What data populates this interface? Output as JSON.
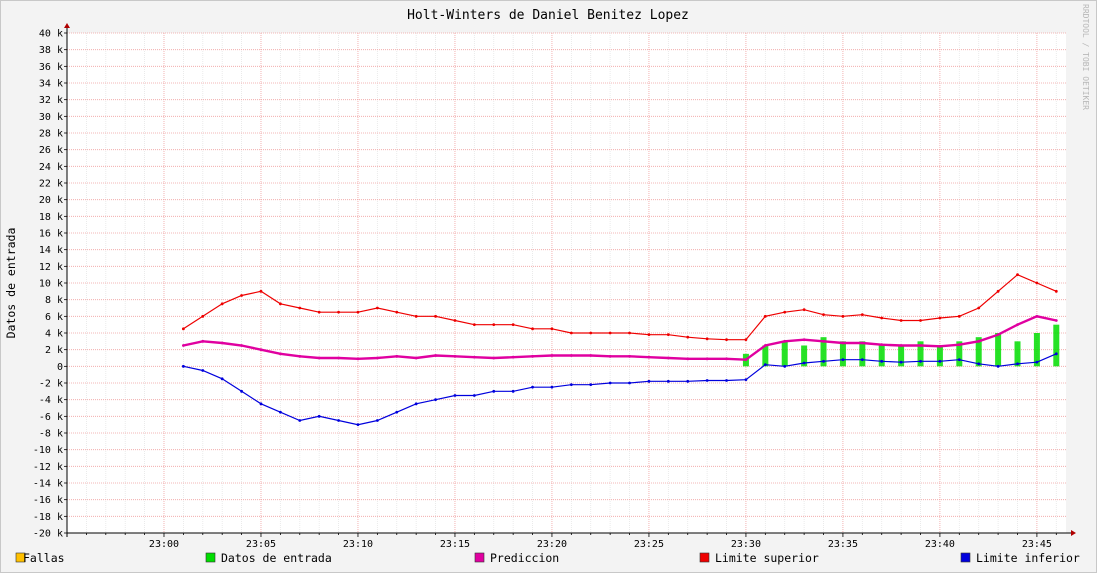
{
  "chart_data": {
    "type": "line",
    "title": "Holt-Winters de Daniel Benitez Lopez",
    "ylabel": "Datos de entrada",
    "watermark": "RRDTOOL / TOBI OETIKER",
    "ylim": [
      -20000,
      40000
    ],
    "y_ticks": [
      {
        "value": 40000,
        "label": "40 k"
      },
      {
        "value": 38000,
        "label": "38 k"
      },
      {
        "value": 36000,
        "label": "36 k"
      },
      {
        "value": 34000,
        "label": "34 k"
      },
      {
        "value": 32000,
        "label": "32 k"
      },
      {
        "value": 30000,
        "label": "30 k"
      },
      {
        "value": 28000,
        "label": "28 k"
      },
      {
        "value": 26000,
        "label": "26 k"
      },
      {
        "value": 24000,
        "label": "24 k"
      },
      {
        "value": 22000,
        "label": "22 k"
      },
      {
        "value": 20000,
        "label": "20 k"
      },
      {
        "value": 18000,
        "label": "18 k"
      },
      {
        "value": 16000,
        "label": "16 k"
      },
      {
        "value": 14000,
        "label": "14 k"
      },
      {
        "value": 12000,
        "label": "12 k"
      },
      {
        "value": 10000,
        "label": "10 k"
      },
      {
        "value": 8000,
        "label": "8 k"
      },
      {
        "value": 6000,
        "label": "6 k"
      },
      {
        "value": 4000,
        "label": "4 k"
      },
      {
        "value": 2000,
        "label": "2 k"
      },
      {
        "value": 0,
        "label": "0"
      },
      {
        "value": -2000,
        "label": "-2 k"
      },
      {
        "value": -4000,
        "label": "-4 k"
      },
      {
        "value": -6000,
        "label": "-6 k"
      },
      {
        "value": -8000,
        "label": "-8 k"
      },
      {
        "value": -10000,
        "label": "-10 k"
      },
      {
        "value": -12000,
        "label": "-12 k"
      },
      {
        "value": -14000,
        "label": "-14 k"
      },
      {
        "value": -16000,
        "label": "-16 k"
      },
      {
        "value": -18000,
        "label": "-18 k"
      },
      {
        "value": -20000,
        "label": "-20 k"
      }
    ],
    "x_range_minutes": [
      "22:55",
      "23:46.5"
    ],
    "x_ticks": [
      "23:00",
      "23:05",
      "23:10",
      "23:15",
      "23:20",
      "23:25",
      "23:30",
      "23:35",
      "23:40",
      "23:45"
    ],
    "grid": true,
    "legend_position": "bottom",
    "series": [
      {
        "name": "Fallas",
        "color": "#ffc000",
        "style": "bar",
        "x": [],
        "y": []
      },
      {
        "name": "Datos de entrada",
        "color": "#00dd00",
        "style": "bar",
        "x": [
          "23:00",
          "23:01",
          "23:02",
          "23:03",
          "23:04",
          "23:05",
          "23:06",
          "23:07",
          "23:08",
          "23:09",
          "23:10",
          "23:11",
          "23:12",
          "23:13",
          "23:14",
          "23:15",
          "23:16",
          "23:17",
          "23:18",
          "23:19",
          "23:20",
          "23:21",
          "23:22",
          "23:23",
          "23:24",
          "23:25",
          "23:26",
          "23:27",
          "23:28",
          "23:29",
          "23:30",
          "23:31",
          "23:32",
          "23:33",
          "23:34",
          "23:35",
          "23:36",
          "23:37",
          "23:38",
          "23:39",
          "23:40",
          "23:41",
          "23:42",
          "23:43",
          "23:44",
          "23:45",
          "23:46"
        ],
        "y": [
          null,
          null,
          null,
          null,
          null,
          null,
          null,
          null,
          null,
          null,
          null,
          null,
          null,
          null,
          null,
          null,
          null,
          null,
          null,
          null,
          null,
          null,
          null,
          null,
          null,
          null,
          null,
          null,
          null,
          null,
          1500,
          2500,
          3000,
          2500,
          3500,
          3000,
          3000,
          2500,
          2500,
          3000,
          2500,
          3000,
          3500,
          4000,
          3000,
          4000,
          5000
        ]
      },
      {
        "name": "Prediccion",
        "color": "#e000a0",
        "style": "line",
        "x": [
          "23:00",
          "23:01",
          "23:02",
          "23:03",
          "23:04",
          "23:05",
          "23:06",
          "23:07",
          "23:08",
          "23:09",
          "23:10",
          "23:11",
          "23:12",
          "23:13",
          "23:14",
          "23:15",
          "23:16",
          "23:17",
          "23:18",
          "23:19",
          "23:20",
          "23:21",
          "23:22",
          "23:23",
          "23:24",
          "23:25",
          "23:26",
          "23:27",
          "23:28",
          "23:29",
          "23:30",
          "23:31",
          "23:32",
          "23:33",
          "23:34",
          "23:35",
          "23:36",
          "23:37",
          "23:38",
          "23:39",
          "23:40",
          "23:41",
          "23:42",
          "23:43",
          "23:44",
          "23:45",
          "23:46"
        ],
        "y": [
          null,
          2500,
          3000,
          2800,
          2500,
          2000,
          1500,
          1200,
          1000,
          1000,
          900,
          1000,
          1200,
          1000,
          1300,
          1200,
          1100,
          1000,
          1100,
          1200,
          1300,
          1300,
          1300,
          1200,
          1200,
          1100,
          1000,
          900,
          900,
          900,
          800,
          2500,
          3000,
          3200,
          3000,
          2800,
          2800,
          2600,
          2500,
          2500,
          2400,
          2600,
          3000,
          3800,
          5000,
          6000,
          5500
        ]
      },
      {
        "name": "Limite superior",
        "color": "#ee0000",
        "style": "line",
        "x": [
          "23:00",
          "23:01",
          "23:02",
          "23:03",
          "23:04",
          "23:05",
          "23:06",
          "23:07",
          "23:08",
          "23:09",
          "23:10",
          "23:11",
          "23:12",
          "23:13",
          "23:14",
          "23:15",
          "23:16",
          "23:17",
          "23:18",
          "23:19",
          "23:20",
          "23:21",
          "23:22",
          "23:23",
          "23:24",
          "23:25",
          "23:26",
          "23:27",
          "23:28",
          "23:29",
          "23:30",
          "23:31",
          "23:32",
          "23:33",
          "23:34",
          "23:35",
          "23:36",
          "23:37",
          "23:38",
          "23:39",
          "23:40",
          "23:41",
          "23:42",
          "23:43",
          "23:44",
          "23:45",
          "23:46"
        ],
        "y": [
          null,
          4500,
          6000,
          7500,
          8500,
          9000,
          7500,
          7000,
          6500,
          6500,
          6500,
          7000,
          6500,
          6000,
          6000,
          5500,
          5000,
          5000,
          5000,
          4500,
          4500,
          4000,
          4000,
          4000,
          4000,
          3800,
          3800,
          3500,
          3300,
          3200,
          3200,
          6000,
          6500,
          6800,
          6200,
          6000,
          6200,
          5800,
          5500,
          5500,
          5800,
          6000,
          7000,
          9000,
          11000,
          10000,
          9000
        ]
      },
      {
        "name": "Limite inferior",
        "color": "#0000dd",
        "style": "line",
        "x": [
          "23:00",
          "23:01",
          "23:02",
          "23:03",
          "23:04",
          "23:05",
          "23:06",
          "23:07",
          "23:08",
          "23:09",
          "23:10",
          "23:11",
          "23:12",
          "23:13",
          "23:14",
          "23:15",
          "23:16",
          "23:17",
          "23:18",
          "23:19",
          "23:20",
          "23:21",
          "23:22",
          "23:23",
          "23:24",
          "23:25",
          "23:26",
          "23:27",
          "23:28",
          "23:29",
          "23:30",
          "23:31",
          "23:32",
          "23:33",
          "23:34",
          "23:35",
          "23:36",
          "23:37",
          "23:38",
          "23:39",
          "23:40",
          "23:41",
          "23:42",
          "23:43",
          "23:44",
          "23:45",
          "23:46"
        ],
        "y": [
          null,
          0,
          -500,
          -1500,
          -3000,
          -4500,
          -5500,
          -6500,
          -6000,
          -6500,
          -7000,
          -6500,
          -5500,
          -4500,
          -4000,
          -3500,
          -3500,
          -3000,
          -3000,
          -2500,
          -2500,
          -2200,
          -2200,
          -2000,
          -2000,
          -1800,
          -1800,
          -1800,
          -1700,
          -1700,
          -1600,
          200,
          0,
          400,
          600,
          800,
          800,
          600,
          500,
          600,
          600,
          800,
          300,
          0,
          300,
          500,
          1500
        ]
      }
    ]
  }
}
